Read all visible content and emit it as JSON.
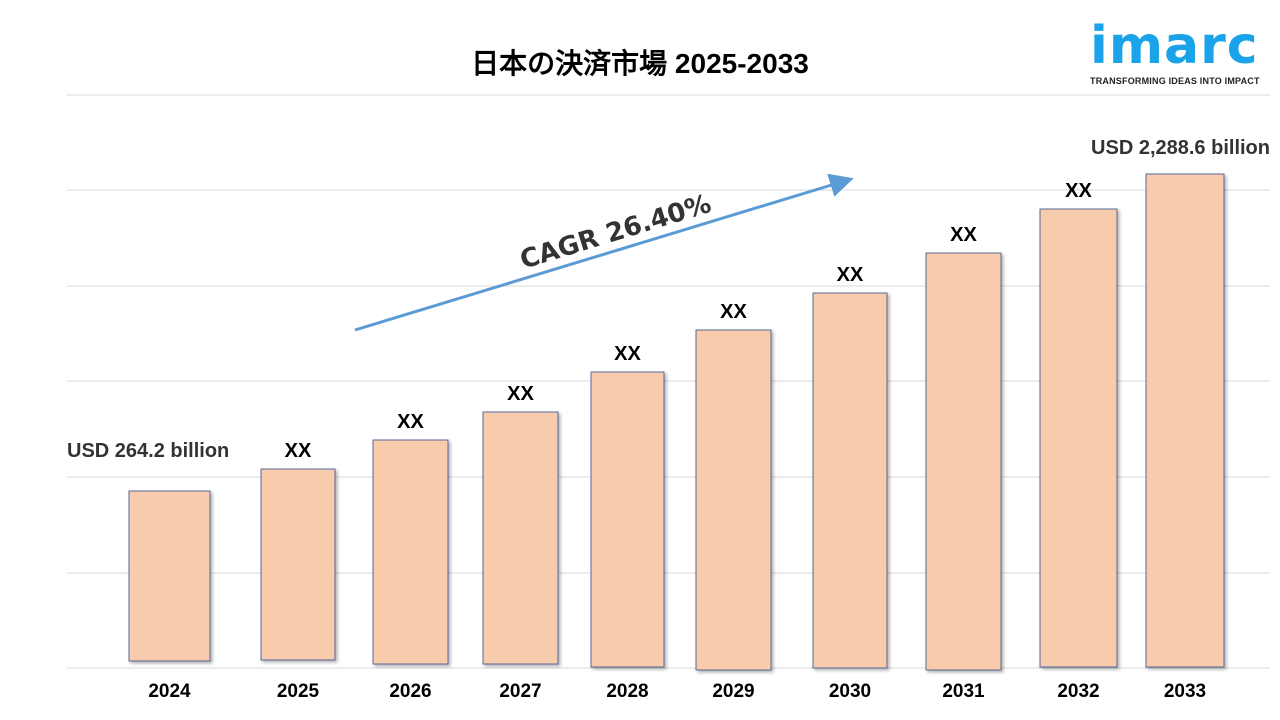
{
  "chart_data": {
    "type": "bar",
    "title": "日本の決済市場 2025-2033",
    "categories": [
      "2024",
      "2025",
      "2026",
      "2027",
      "2028",
      "2029",
      "2030",
      "2031",
      "2032",
      "2033"
    ],
    "values": [
      264.2,
      null,
      null,
      null,
      null,
      null,
      null,
      null,
      null,
      2288.6
    ],
    "data_labels": [
      "USD 264.2 billion",
      "XX",
      "XX",
      "XX",
      "XX",
      "XX",
      "XX",
      "XX",
      "XX",
      "USD 2,288.6 billion"
    ],
    "unit": "USD billion",
    "annotation": "CAGR 26.40%",
    "grid": true,
    "bar_color": "#f7cbac",
    "bar_border_color": "#5a6b9a",
    "arrow_color": "#5b9bd5"
  },
  "logo": {
    "word": "imarc",
    "tagline": "TRANSFORMING IDEAS INTO IMPACT",
    "color": "#1aa3e8"
  }
}
